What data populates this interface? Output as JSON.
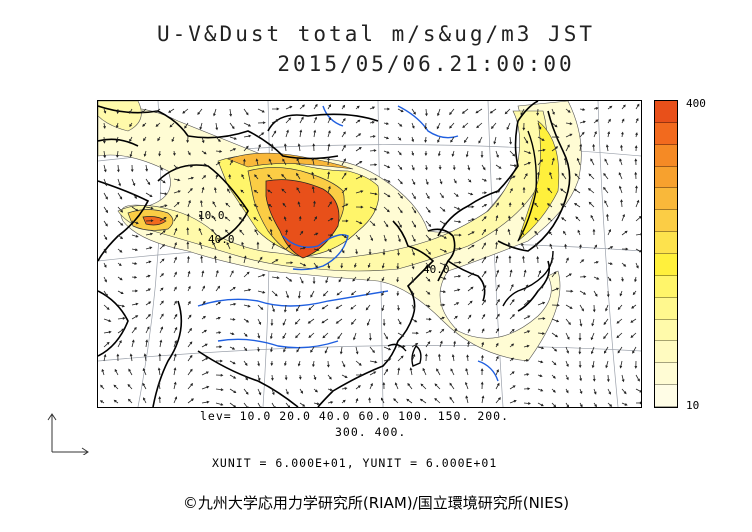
{
  "header": {
    "title_line1": "U-V&Dust total m/s&ug/m3 JST",
    "title_line2": "2015/05/06.21:00:00"
  },
  "colorbar": {
    "max_label": "400",
    "min_label": "10",
    "colors": [
      "#e8501a",
      "#f26a1e",
      "#f58a25",
      "#f7a12e",
      "#f9b83a",
      "#fbcd45",
      "#fde24d",
      "#fff03c",
      "#fff56a",
      "#fff88e",
      "#fffaaa",
      "#fffbc0",
      "#fffcd4",
      "#fffde6"
    ]
  },
  "levels": {
    "line1": "lev= 10.0 20.0 40.0 60.0 100. 150. 200.",
    "line2": "300. 400."
  },
  "units": "XUNIT = 6.000E+01, YUNIT = 6.000E+01",
  "credit": "©九州大学応用力学研究所(RIAM)/国立環境研究所(NIES)",
  "map": {
    "contour_labels": [
      "10.0",
      "40.0",
      "40.0"
    ],
    "colors": {
      "coast": "#000000",
      "river": "#1f5fe0",
      "grid": "#9aa0aa"
    }
  }
}
